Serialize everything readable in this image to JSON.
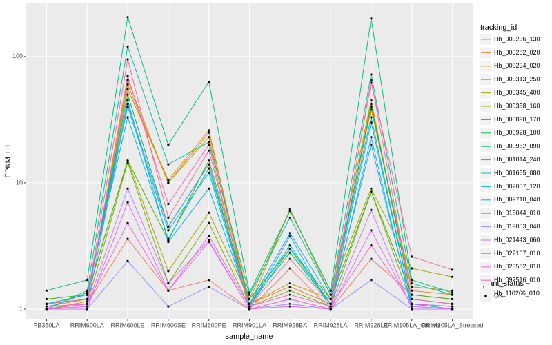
{
  "chart_data": {
    "type": "line",
    "x_label": "sample_name",
    "y_label": "FPKM + 1",
    "legend_title": "tracking_id",
    "categories": [
      "PB350LA",
      "RRIM600LA",
      "RRIM600LE",
      "RRIM600SE",
      "RRIM600PE",
      "RRIM901LA",
      "RRIM928BA",
      "RRIM928LA",
      "RRIM928LE",
      "RRIM105LA_Control",
      "RRIM105LA_Stressed"
    ],
    "ylog": true,
    "ylim": [
      0.838,
      263
    ],
    "yticks": [
      1,
      10,
      100
    ],
    "grid": true,
    "legend_position": "right",
    "point_legend": {
      "title": "quant_status",
      "labels": [
        "OK"
      ],
      "color": "#000000"
    },
    "series": [
      {
        "name": "Hb_000236_130",
        "color": "#F8766D",
        "values": [
          1.0,
          1.1,
          3.6,
          1.4,
          1.7,
          1.0,
          2.1,
          1.0,
          2.5,
          1.3,
          1.2
        ]
      },
      {
        "name": "Hb_000282_020",
        "color": "#EA8331",
        "values": [
          1.05,
          1.2,
          60,
          10,
          25,
          1.1,
          1.5,
          1.1,
          40,
          1.4,
          1.3
        ]
      },
      {
        "name": "Hb_000294_020",
        "color": "#D89000",
        "values": [
          1.1,
          1.2,
          55,
          10.5,
          26,
          1.1,
          1.6,
          1.2,
          38,
          1.5,
          1.4
        ]
      },
      {
        "name": "Hb_000313_250",
        "color": "#C09B00",
        "values": [
          1.0,
          1.15,
          65,
          10,
          23,
          1.05,
          6.2,
          1.3,
          45,
          1.2,
          1.1
        ]
      },
      {
        "name": "Hb_000345_400",
        "color": "#A3A500",
        "values": [
          1.1,
          1.3,
          15,
          2.0,
          5.8,
          1.2,
          6.0,
          1.4,
          9,
          2.1,
          1.8
        ]
      },
      {
        "name": "Hb_000358_160",
        "color": "#7CAE00",
        "values": [
          1.0,
          1.1,
          14.5,
          1.6,
          4.8,
          1.05,
          1.4,
          1.05,
          8.5,
          1.1,
          1.05
        ]
      },
      {
        "name": "Hb_000890_170",
        "color": "#39B600",
        "values": [
          1.2,
          1.3,
          15,
          3.5,
          15,
          1.2,
          3.0,
          1.2,
          8.5,
          1.3,
          1.2
        ]
      },
      {
        "name": "Hb_000928_100",
        "color": "#00BB4E",
        "values": [
          1.1,
          1.2,
          50,
          4.5,
          14,
          1.1,
          2.8,
          1.1,
          42,
          1.2,
          1.1
        ]
      },
      {
        "name": "Hb_000962_090",
        "color": "#00BF7D",
        "values": [
          1.4,
          1.7,
          205,
          20,
          63,
          1.35,
          6.0,
          1.4,
          200,
          1.7,
          1.35
        ]
      },
      {
        "name": "Hb_001014_240",
        "color": "#00C1A3",
        "values": [
          1.0,
          1.4,
          120,
          14,
          21,
          1.3,
          5.3,
          1.3,
          72,
          1.6,
          1.3
        ]
      },
      {
        "name": "Hb_001655_080",
        "color": "#00BFC4",
        "values": [
          1.0,
          1.35,
          33,
          3.6,
          13,
          1.1,
          3.2,
          1.1,
          30,
          1.1,
          1.05
        ]
      },
      {
        "name": "Hb_002007_120",
        "color": "#00BAE0",
        "values": [
          1.1,
          1.3,
          40,
          4.2,
          12,
          1.05,
          3.0,
          1.1,
          20,
          1.05,
          1.0
        ]
      },
      {
        "name": "Hb_002710_040",
        "color": "#00B0F6",
        "values": [
          1.2,
          1.2,
          45,
          3.4,
          9,
          1.1,
          4.0,
          1.2,
          33,
          1.1,
          1.0
        ]
      },
      {
        "name": "Hb_015044_010",
        "color": "#35A2FF",
        "values": [
          1.0,
          1.05,
          42,
          4.5,
          14,
          1.0,
          3.8,
          1.0,
          23,
          1.0,
          1.0
        ]
      },
      {
        "name": "Hb_019053_040",
        "color": "#9590FF",
        "values": [
          1.0,
          1.0,
          2.4,
          1.05,
          1.5,
          1.0,
          1.1,
          1.0,
          1.7,
          1.0,
          1.0
        ]
      },
      {
        "name": "Hb_021443_060",
        "color": "#C77CFF",
        "values": [
          1.0,
          1.05,
          9,
          1.6,
          3.5,
          1.0,
          1.2,
          1.0,
          6.1,
          1.0,
          1.0
        ]
      },
      {
        "name": "Hb_022167_010",
        "color": "#E76BF3",
        "values": [
          1.0,
          1.0,
          7,
          1.4,
          3.4,
          1.0,
          1.05,
          1.0,
          4.2,
          1.05,
          1.0
        ]
      },
      {
        "name": "Hb_023582_010",
        "color": "#FA62DB",
        "values": [
          1.05,
          1.1,
          4.8,
          1.4,
          3.8,
          1.05,
          1.3,
          1.05,
          3.2,
          1.1,
          1.05
        ]
      },
      {
        "name": "Hb_092516_010",
        "color": "#FF62BC",
        "values": [
          1.0,
          1.1,
          70,
          6.8,
          20,
          1.0,
          1.2,
          1.0,
          65,
          1.2,
          1.1
        ]
      },
      {
        "name": "Hb_110266_010",
        "color": "#FF6C91",
        "values": [
          1.1,
          1.2,
          95,
          5.3,
          18,
          1.05,
          2.5,
          1.1,
          62,
          2.6,
          2.05
        ]
      }
    ]
  }
}
